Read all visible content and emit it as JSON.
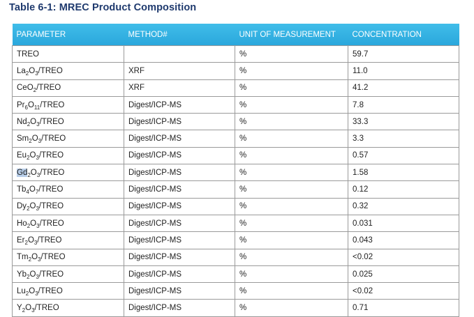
{
  "title": "Table 6-1: MREC Product Composition",
  "columns": [
    "PARAMETER",
    "METHOD#",
    "UNIT OF MEASUREMENT",
    "CONCENTRATION"
  ],
  "rows": [
    {
      "param": [
        {
          "t": "TREO"
        }
      ],
      "method": "",
      "unit": "%",
      "conc": "59.7"
    },
    {
      "param": [
        {
          "t": "La"
        },
        {
          "s": "2"
        },
        {
          "t": "O"
        },
        {
          "s": "3"
        },
        {
          "t": "/TREO"
        }
      ],
      "method": "XRF",
      "unit": "%",
      "conc": "11.0"
    },
    {
      "param": [
        {
          "t": "CeO"
        },
        {
          "s": "2"
        },
        {
          "t": "/TREO"
        }
      ],
      "method": "XRF",
      "unit": "%",
      "conc": "41.2"
    },
    {
      "param": [
        {
          "t": "Pr"
        },
        {
          "s": "6"
        },
        {
          "t": "O"
        },
        {
          "s": "11"
        },
        {
          "t": "/TREO"
        }
      ],
      "method": "Digest/ICP-MS",
      "unit": "%",
      "conc": "7.8"
    },
    {
      "param": [
        {
          "t": "Nd"
        },
        {
          "s": "2"
        },
        {
          "t": "O"
        },
        {
          "s": "3"
        },
        {
          "t": "/TREO"
        }
      ],
      "method": "Digest/ICP-MS",
      "unit": "%",
      "conc": "33.3"
    },
    {
      "param": [
        {
          "t": "Sm"
        },
        {
          "s": "2"
        },
        {
          "t": "O"
        },
        {
          "s": "3"
        },
        {
          "t": "/TREO"
        }
      ],
      "method": "Digest/ICP-MS",
      "unit": "%",
      "conc": "3.3"
    },
    {
      "param": [
        {
          "t": "Eu"
        },
        {
          "s": "2"
        },
        {
          "t": "O"
        },
        {
          "s": "3"
        },
        {
          "t": "/TREO"
        }
      ],
      "method": "Digest/ICP-MS",
      "unit": "%",
      "conc": "0.57"
    },
    {
      "param": [
        {
          "t": "Gd",
          "hl": true
        },
        {
          "s": "2"
        },
        {
          "t": "O"
        },
        {
          "s": "3"
        },
        {
          "t": "/TREO"
        }
      ],
      "method": "Digest/ICP-MS",
      "unit": "%",
      "conc": "1.58"
    },
    {
      "param": [
        {
          "t": "Tb"
        },
        {
          "s": "4"
        },
        {
          "t": "O"
        },
        {
          "s": "7"
        },
        {
          "t": "/TREO"
        }
      ],
      "method": "Digest/ICP-MS",
      "unit": "%",
      "conc": "0.12"
    },
    {
      "param": [
        {
          "t": "Dy"
        },
        {
          "s": "2"
        },
        {
          "t": "O"
        },
        {
          "s": "3"
        },
        {
          "t": "/TREO"
        }
      ],
      "method": "Digest/ICP-MS",
      "unit": "%",
      "conc": "0.32"
    },
    {
      "param": [
        {
          "t": "Ho"
        },
        {
          "s": "2"
        },
        {
          "t": "O"
        },
        {
          "s": "3"
        },
        {
          "t": "/TREO"
        }
      ],
      "method": "Digest/ICP-MS",
      "unit": "%",
      "conc": "0.031"
    },
    {
      "param": [
        {
          "t": "Er"
        },
        {
          "s": "2"
        },
        {
          "t": "O"
        },
        {
          "s": "3"
        },
        {
          "t": "/TREO"
        }
      ],
      "method": "Digest/ICP-MS",
      "unit": "%",
      "conc": "0.043"
    },
    {
      "param": [
        {
          "t": "Tm"
        },
        {
          "s": "2"
        },
        {
          "t": "O"
        },
        {
          "s": "3"
        },
        {
          "t": "/TREO"
        }
      ],
      "method": "Digest/ICP-MS",
      "unit": "%",
      "conc": "<0.02"
    },
    {
      "param": [
        {
          "t": "Yb"
        },
        {
          "s": "2"
        },
        {
          "t": "O"
        },
        {
          "s": "3"
        },
        {
          "t": "/TREO"
        }
      ],
      "method": "Digest/ICP-MS",
      "unit": "%",
      "conc": "0.025"
    },
    {
      "param": [
        {
          "t": "Lu"
        },
        {
          "s": "2"
        },
        {
          "t": "O"
        },
        {
          "s": "3"
        },
        {
          "t": "/TREO"
        }
      ],
      "method": "Digest/ICP-MS",
      "unit": "%",
      "conc": "<0.02"
    },
    {
      "param": [
        {
          "t": "Y"
        },
        {
          "s": "2"
        },
        {
          "t": "O"
        },
        {
          "s": "3"
        },
        {
          "t": "/TREO"
        }
      ],
      "method": "Digest/ICP-MS",
      "unit": "%",
      "conc": "0.71"
    }
  ]
}
